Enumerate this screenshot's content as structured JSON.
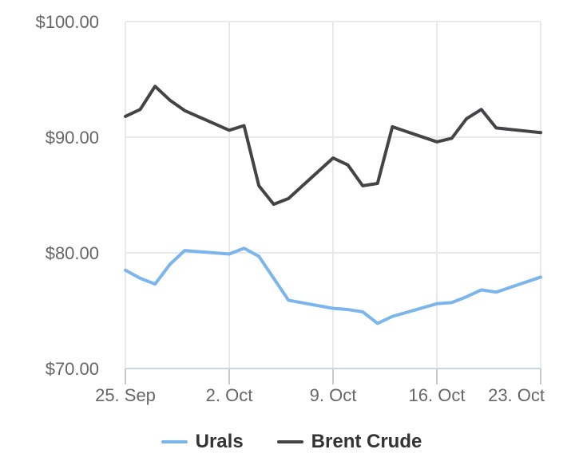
{
  "chart_data": {
    "type": "line",
    "title": "",
    "xlabel": "",
    "ylabel": "",
    "grid": true,
    "legend_position": "bottom-center",
    "ylim": [
      70,
      100
    ],
    "x_range_days": [
      0,
      28
    ],
    "y_ticks": [
      {
        "label": "$70.00",
        "value": 70
      },
      {
        "label": "$80.00",
        "value": 80
      },
      {
        "label": "$90.00",
        "value": 90
      },
      {
        "label": "$100.00",
        "value": 100
      }
    ],
    "x_ticks": [
      {
        "label": "25. Sep",
        "day": 0
      },
      {
        "label": "2. Oct",
        "day": 7
      },
      {
        "label": "9. Oct",
        "day": 14
      },
      {
        "label": "16. Oct",
        "day": 21
      },
      {
        "label": "23. Oct",
        "day": 28
      }
    ],
    "x_dates": [
      "25. Sep",
      "26. Sep",
      "27. Sep",
      "28. Sep",
      "29. Sep",
      "2. Oct",
      "3. Oct",
      "4. Oct",
      "5. Oct",
      "6. Oct",
      "9. Oct",
      "10. Oct",
      "11. Oct",
      "12. Oct",
      "13. Oct",
      "16. Oct",
      "17. Oct",
      "18. Oct",
      "19. Oct",
      "20. Oct",
      "23. Oct"
    ],
    "x_day_offsets": [
      0,
      1,
      2,
      3,
      4,
      7,
      8,
      9,
      10,
      11,
      14,
      15,
      16,
      17,
      18,
      21,
      22,
      23,
      24,
      25,
      28
    ],
    "series": [
      {
        "name": "Urals",
        "color": "#7cb5ec",
        "values": [
          78.5,
          77.8,
          77.3,
          79.0,
          80.2,
          79.9,
          80.4,
          79.7,
          77.8,
          75.9,
          75.2,
          75.1,
          74.9,
          73.9,
          74.5,
          75.6,
          75.7,
          76.2,
          76.8,
          76.6,
          77.9
        ]
      },
      {
        "name": "Brent Crude",
        "color": "#434348",
        "values": [
          91.8,
          92.4,
          94.4,
          93.2,
          92.3,
          90.6,
          91.0,
          85.8,
          84.2,
          84.7,
          88.2,
          87.6,
          85.8,
          86.0,
          90.9,
          89.6,
          89.9,
          91.6,
          92.4,
          90.8,
          90.4
        ]
      }
    ]
  },
  "legend": {
    "items": [
      {
        "label": "Urals",
        "color": "#7cb5ec"
      },
      {
        "label": "Brent Crude",
        "color": "#434348"
      }
    ]
  },
  "styles": {
    "background": "#ffffff",
    "grid_color": "#e9e9e9",
    "axis_line_color": "#ccd6eb",
    "tick_color": "#c9c9c9",
    "axis_label_color": "#666666",
    "legend_text_color": "#333333"
  }
}
